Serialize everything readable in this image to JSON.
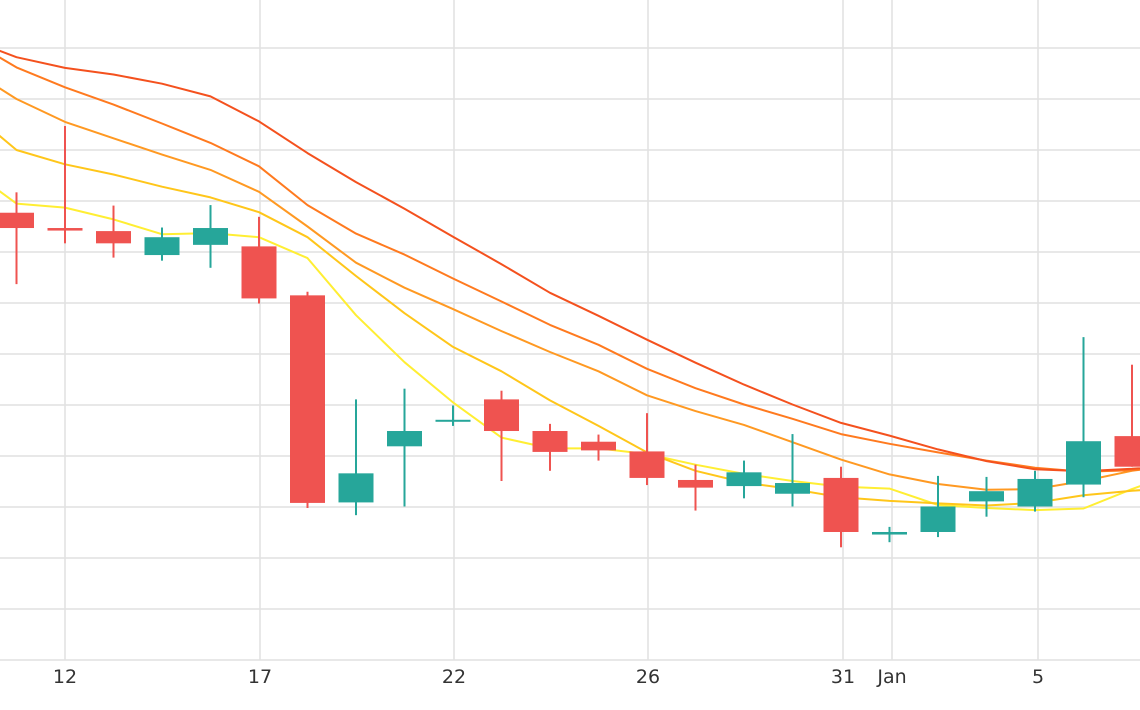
{
  "chart_data": {
    "type": "candlestick",
    "title": "",
    "xlabel": "",
    "ylabel": "",
    "grid": true,
    "legend": "none",
    "y_axis_ticks_visible": false,
    "x_tick_labels": [
      {
        "day": 12,
        "label": "12"
      },
      {
        "day": 17,
        "label": "17"
      },
      {
        "day": 22,
        "label": "22"
      },
      {
        "day": 26,
        "label": "26"
      },
      {
        "day": 31,
        "label": "31"
      },
      {
        "day": 32,
        "label": "Jan"
      },
      {
        "day": 36,
        "label": "5"
      }
    ],
    "colors": {
      "up": "#26a69a",
      "down": "#ef5350",
      "ma_lines": [
        "#ffee33",
        "#ffc61a",
        "#ff9922",
        "#ff7a1f",
        "#f4511e"
      ]
    },
    "candles": [
      {
        "day": 11,
        "open": 8.77,
        "high": 9.17,
        "low": 7.37,
        "close": 8.47
      },
      {
        "day": 12,
        "open": 8.47,
        "high": 10.47,
        "low": 8.17,
        "close": 8.42
      },
      {
        "day": 13,
        "open": 8.41,
        "high": 8.91,
        "low": 7.89,
        "close": 8.17
      },
      {
        "day": 14,
        "open": 7.94,
        "high": 8.48,
        "low": 7.83,
        "close": 8.29
      },
      {
        "day": 15,
        "open": 8.14,
        "high": 8.92,
        "low": 7.69,
        "close": 8.47
      },
      {
        "day": 16,
        "open": 8.11,
        "high": 8.69,
        "low": 6.99,
        "close": 7.09
      },
      {
        "day": 17,
        "open": 7.15,
        "high": 7.22,
        "low": 2.98,
        "close": 3.08
      },
      {
        "day": 18,
        "open": 3.09,
        "high": 5.11,
        "low": 2.84,
        "close": 3.66
      },
      {
        "day": 19,
        "open": 4.19,
        "high": 5.32,
        "low": 3.01,
        "close": 4.49
      },
      {
        "day": 20,
        "open": 4.71,
        "high": 4.99,
        "low": 4.59,
        "close": 4.71
      },
      {
        "day": 21,
        "open": 5.11,
        "high": 5.28,
        "low": 3.51,
        "close": 4.49
      },
      {
        "day": 22,
        "open": 4.49,
        "high": 4.63,
        "low": 3.71,
        "close": 4.08
      },
      {
        "day": 23,
        "open": 4.28,
        "high": 4.42,
        "low": 3.91,
        "close": 4.11
      },
      {
        "day": 24,
        "open": 4.09,
        "high": 4.84,
        "low": 3.43,
        "close": 3.57
      },
      {
        "day": 25,
        "open": 3.53,
        "high": 3.83,
        "low": 2.93,
        "close": 3.38
      },
      {
        "day": 26,
        "open": 3.41,
        "high": 3.91,
        "low": 3.17,
        "close": 3.68
      },
      {
        "day": 27,
        "open": 3.26,
        "high": 4.43,
        "low": 3.01,
        "close": 3.47
      },
      {
        "day": 28,
        "open": 3.57,
        "high": 3.79,
        "low": 2.21,
        "close": 2.51
      },
      {
        "day": 29,
        "open": 2.46,
        "high": 2.61,
        "low": 2.31,
        "close": 2.51
      },
      {
        "day": 30,
        "open": 2.51,
        "high": 3.61,
        "low": 2.41,
        "close": 3.01
      },
      {
        "day": 31,
        "open": 3.11,
        "high": 3.59,
        "low": 2.81,
        "close": 3.31
      },
      {
        "day": 32,
        "open": 3.01,
        "high": 3.71,
        "low": 2.91,
        "close": 3.55
      },
      {
        "day": 33,
        "open": 3.44,
        "high": 6.33,
        "low": 3.19,
        "close": 4.29
      },
      {
        "day": 34,
        "open": 4.39,
        "high": 5.79,
        "low": 3.79,
        "close": 3.79
      }
    ],
    "ma_series": [
      {
        "x": [
          10.5,
          11,
          12,
          13,
          14,
          15,
          16,
          17,
          18,
          19,
          20,
          21,
          22,
          23,
          24,
          25,
          26,
          27,
          28,
          29,
          30,
          31,
          32,
          33,
          34,
          35,
          35.6
        ],
        "y": [
          9.3,
          8.95,
          8.87,
          8.64,
          8.35,
          8.37,
          8.29,
          7.88,
          6.76,
          5.84,
          5.05,
          4.36,
          4.15,
          4.15,
          4.04,
          3.83,
          3.65,
          3.51,
          3.4,
          3.36,
          3.04,
          2.98,
          2.94,
          2.97,
          3.35,
          3.69,
          3.88
        ]
      },
      {
        "x": [
          10.5,
          11,
          12,
          13,
          14,
          15,
          16,
          17,
          18,
          19,
          20,
          21,
          22,
          23,
          24,
          25,
          26,
          27,
          28,
          29,
          30,
          31,
          32,
          33,
          34,
          35,
          35.6
        ],
        "y": [
          10.4,
          10.0,
          9.72,
          9.52,
          9.28,
          9.07,
          8.78,
          8.29,
          7.53,
          6.8,
          6.14,
          5.66,
          5.09,
          4.59,
          4.07,
          3.71,
          3.48,
          3.35,
          3.19,
          3.12,
          3.07,
          3.03,
          3.08,
          3.23,
          3.32,
          3.38,
          3.4
        ]
      },
      {
        "x": [
          10.5,
          11,
          12,
          13,
          14,
          15,
          16,
          17,
          18,
          19,
          20,
          21,
          22,
          23,
          24,
          25,
          26,
          27,
          28,
          29,
          30,
          31,
          32,
          33,
          34,
          35,
          35.6
        ],
        "y": [
          11.3,
          11.0,
          10.55,
          10.23,
          9.91,
          9.61,
          9.18,
          8.5,
          7.79,
          7.3,
          6.88,
          6.45,
          6.04,
          5.66,
          5.19,
          4.88,
          4.61,
          4.27,
          3.93,
          3.64,
          3.45,
          3.34,
          3.35,
          3.51,
          3.71,
          3.83,
          3.91
        ]
      },
      {
        "x": [
          10.5,
          11,
          12,
          13,
          14,
          15,
          16,
          17,
          18,
          19,
          20,
          21,
          22,
          23,
          24,
          25,
          26,
          27,
          28,
          29,
          30,
          31,
          32,
          33,
          34,
          35,
          35.6
        ],
        "y": [
          11.9,
          11.62,
          11.23,
          10.89,
          10.52,
          10.14,
          9.68,
          8.92,
          8.36,
          7.95,
          7.48,
          7.03,
          6.57,
          6.18,
          5.71,
          5.33,
          5.01,
          4.73,
          4.43,
          4.24,
          4.07,
          3.91,
          3.77,
          3.69,
          3.72,
          3.82,
          3.86
        ]
      },
      {
        "x": [
          10.5,
          11,
          12,
          13,
          14,
          15,
          16,
          17,
          18,
          19,
          20,
          21,
          22,
          23,
          24,
          25,
          26,
          27,
          28,
          29,
          30,
          31,
          32,
          33,
          34,
          35,
          35.6
        ],
        "y": [
          12.0,
          11.82,
          11.61,
          11.48,
          11.3,
          11.05,
          10.56,
          9.94,
          9.37,
          8.85,
          8.3,
          7.76,
          7.2,
          6.75,
          6.28,
          5.83,
          5.4,
          5.01,
          4.65,
          4.4,
          4.13,
          3.9,
          3.74,
          3.7,
          3.75,
          3.82,
          3.85
        ]
      }
    ]
  }
}
